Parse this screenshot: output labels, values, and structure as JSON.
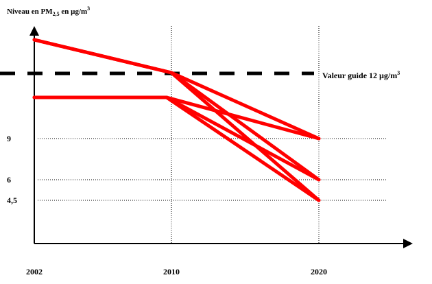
{
  "chart_data": {
    "type": "line",
    "title_main": "Niveau en PM",
    "title_sub": "2,5",
    "title_tail": " en µg/m",
    "title_sup": "3",
    "x_ticks": [
      "2002",
      "2010",
      "2020"
    ],
    "y_ticks": [
      "9",
      "6",
      "4,5"
    ],
    "y_tick_values": [
      9,
      6,
      4.5
    ],
    "guide_label": "Valeur guide 12 µg/m",
    "guide_label_sup": "3",
    "guide_value": 12,
    "line_color": "#ff0000",
    "series": [
      {
        "x": [
          "2002",
          "2010",
          "2020"
        ],
        "values": [
          14,
          12,
          9
        ]
      },
      {
        "x": [
          "2002",
          "2010",
          "2020"
        ],
        "values": [
          14,
          12,
          6
        ]
      },
      {
        "x": [
          "2002",
          "2010",
          "2020"
        ],
        "values": [
          14,
          12,
          4.5
        ]
      },
      {
        "x": [
          "2002",
          "2010",
          "2020"
        ],
        "values": [
          11,
          11,
          9
        ]
      },
      {
        "x": [
          "2002",
          "2010",
          "2020"
        ],
        "values": [
          11,
          11,
          6
        ]
      },
      {
        "x": [
          "2002",
          "2010",
          "2020"
        ],
        "values": [
          11,
          11,
          4.5
        ]
      }
    ]
  }
}
